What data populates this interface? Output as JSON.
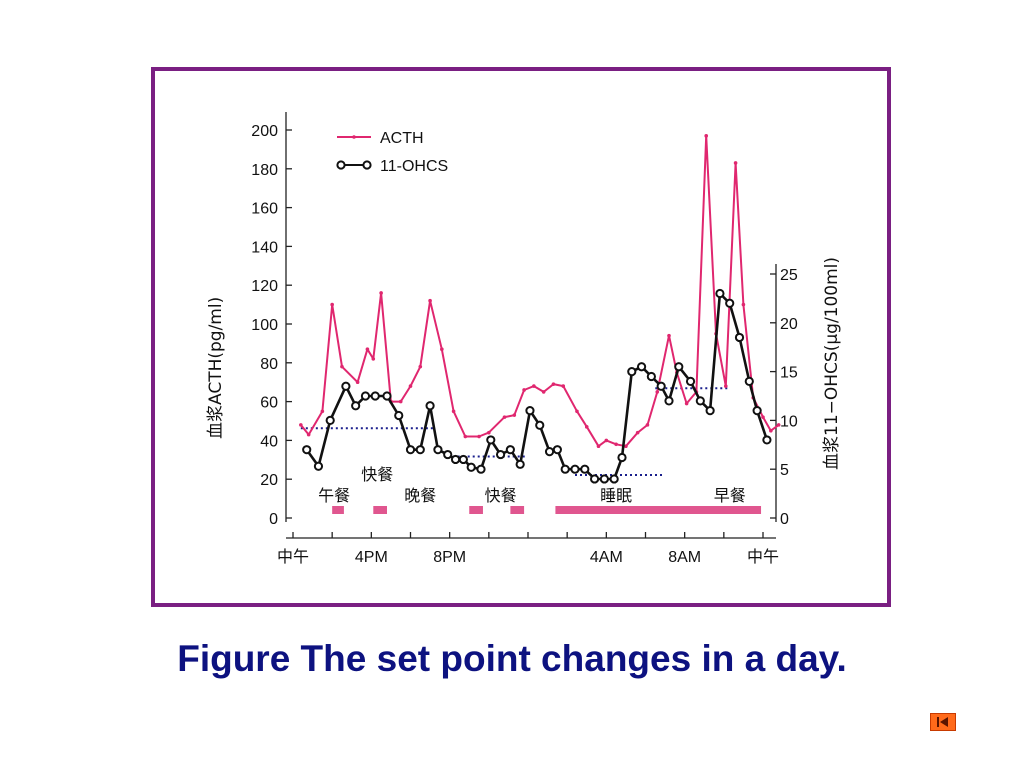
{
  "caption": "Figure The set point changes in a day.",
  "colors": {
    "acth": "#e0276f",
    "ohcs": "#111111",
    "frame": "#7a1f82",
    "caption": "#0d1280",
    "meal_bar": "#e0568f",
    "dotted": "#1a1f8c"
  },
  "chart_data": {
    "type": "line",
    "ylabel": "血浆ACTH(pg/ml)",
    "y2label": "血浆11−OHCS(μg/100ml)",
    "ylim": [
      0,
      200
    ],
    "y_ticks": [
      "0",
      "20",
      "40",
      "60",
      "80",
      "100",
      "120",
      "140",
      "160",
      "180",
      "200"
    ],
    "y2lim": [
      0,
      25
    ],
    "y2_ticks": [
      "0",
      "5",
      "10",
      "15",
      "20",
      "25"
    ],
    "xlim": [
      0,
      24
    ],
    "x_tick_labels": [
      {
        "x": 0,
        "label": "中午"
      },
      {
        "x": 4,
        "label": "4PM"
      },
      {
        "x": 8,
        "label": "8PM"
      },
      {
        "x": 16,
        "label": "4AM"
      },
      {
        "x": 20,
        "label": "8AM"
      },
      {
        "x": 24,
        "label": "中午"
      }
    ],
    "x_minor_ticks": [
      2,
      6,
      10,
      12,
      14,
      18,
      22
    ],
    "legend_position": "top-left",
    "series": [
      {
        "name": "ACTH",
        "axis": "left",
        "points": [
          [
            0.4,
            48
          ],
          [
            0.8,
            43
          ],
          [
            1.5,
            55
          ],
          [
            2.0,
            110
          ],
          [
            2.5,
            78
          ],
          [
            3.3,
            70
          ],
          [
            3.8,
            87
          ],
          [
            4.1,
            82
          ],
          [
            4.5,
            116
          ],
          [
            5.0,
            60
          ],
          [
            5.5,
            60
          ],
          [
            6.0,
            68
          ],
          [
            6.5,
            78
          ],
          [
            7.0,
            112
          ],
          [
            7.6,
            87
          ],
          [
            8.2,
            55
          ],
          [
            8.8,
            42
          ],
          [
            9.5,
            42
          ],
          [
            10.0,
            44
          ],
          [
            10.8,
            52
          ],
          [
            11.3,
            53
          ],
          [
            11.8,
            66
          ],
          [
            12.3,
            68
          ],
          [
            12.8,
            65
          ],
          [
            13.3,
            69
          ],
          [
            13.8,
            68
          ],
          [
            14.5,
            55
          ],
          [
            15.0,
            47
          ],
          [
            15.6,
            37
          ],
          [
            16.0,
            40
          ],
          [
            16.5,
            38
          ],
          [
            17.0,
            37
          ],
          [
            17.6,
            44
          ],
          [
            18.1,
            48
          ],
          [
            18.6,
            65
          ],
          [
            19.2,
            94
          ],
          [
            19.6,
            75
          ],
          [
            20.1,
            59
          ],
          [
            20.6,
            65
          ],
          [
            21.1,
            197
          ],
          [
            21.6,
            95
          ],
          [
            22.1,
            68
          ],
          [
            22.6,
            183
          ],
          [
            23.0,
            110
          ],
          [
            23.5,
            62
          ],
          [
            24.0,
            52
          ],
          [
            24.4,
            45
          ],
          [
            24.8,
            48
          ]
        ]
      },
      {
        "name": "11-OHCS",
        "axis": "right",
        "points": [
          [
            0.7,
            7.0
          ],
          [
            1.3,
            5.3
          ],
          [
            1.9,
            10.0
          ],
          [
            2.7,
            13.5
          ],
          [
            3.2,
            11.5
          ],
          [
            3.7,
            12.5
          ],
          [
            4.2,
            12.5
          ],
          [
            4.8,
            12.5
          ],
          [
            5.4,
            10.5
          ],
          [
            6.0,
            7.0
          ],
          [
            6.5,
            7.0
          ],
          [
            7.0,
            11.5
          ],
          [
            7.4,
            7.0
          ],
          [
            7.9,
            6.5
          ],
          [
            8.3,
            6.0
          ],
          [
            8.7,
            6.0
          ],
          [
            9.1,
            5.2
          ],
          [
            9.6,
            5.0
          ],
          [
            10.1,
            8.0
          ],
          [
            10.6,
            6.5
          ],
          [
            11.1,
            7.0
          ],
          [
            11.6,
            5.5
          ],
          [
            12.1,
            11.0
          ],
          [
            12.6,
            9.5
          ],
          [
            13.1,
            6.8
          ],
          [
            13.5,
            7.0
          ],
          [
            13.9,
            5.0
          ],
          [
            14.4,
            5.0
          ],
          [
            14.9,
            5.0
          ],
          [
            15.4,
            4.0
          ],
          [
            15.9,
            4.0
          ],
          [
            16.4,
            4.0
          ],
          [
            16.8,
            6.2
          ],
          [
            17.3,
            15.0
          ],
          [
            17.8,
            15.5
          ],
          [
            18.3,
            14.5
          ],
          [
            18.8,
            13.5
          ],
          [
            19.2,
            12.0
          ],
          [
            19.7,
            15.5
          ],
          [
            20.3,
            14.0
          ],
          [
            20.8,
            12.0
          ],
          [
            21.3,
            11.0
          ],
          [
            21.8,
            23.0
          ],
          [
            22.3,
            22.0
          ],
          [
            22.8,
            18.5
          ],
          [
            23.3,
            14.0
          ],
          [
            23.7,
            11.0
          ],
          [
            24.2,
            8.0
          ]
        ]
      }
    ],
    "annotations": [
      {
        "text": "午餐",
        "x": 2.1,
        "row": "low"
      },
      {
        "text": "快餐",
        "x": 4.3,
        "row": "high"
      },
      {
        "text": "晚餐",
        "x": 6.5,
        "row": "low"
      },
      {
        "text": "快餐",
        "x": 10.6,
        "row": "low"
      },
      {
        "text": "睡眠",
        "x": 16.5,
        "row": "low"
      },
      {
        "text": "早餐",
        "x": 22.3,
        "row": "low"
      }
    ],
    "meal_bars": [
      [
        2.0,
        2.6
      ],
      [
        4.1,
        4.8
      ],
      [
        9.0,
        9.7
      ],
      [
        11.1,
        11.8
      ],
      [
        13.4,
        23.9
      ]
    ],
    "dotted_levels": [
      {
        "x0": 0.4,
        "x1": 7.2,
        "axis": "right",
        "y": 9.2
      },
      {
        "x0": 7.9,
        "x1": 11.9,
        "axis": "right",
        "y": 6.3
      },
      {
        "x0": 14.4,
        "x1": 18.9,
        "axis": "right",
        "y": 4.4
      },
      {
        "x0": 18.5,
        "x1": 22.3,
        "axis": "right",
        "y": 13.3
      }
    ]
  }
}
